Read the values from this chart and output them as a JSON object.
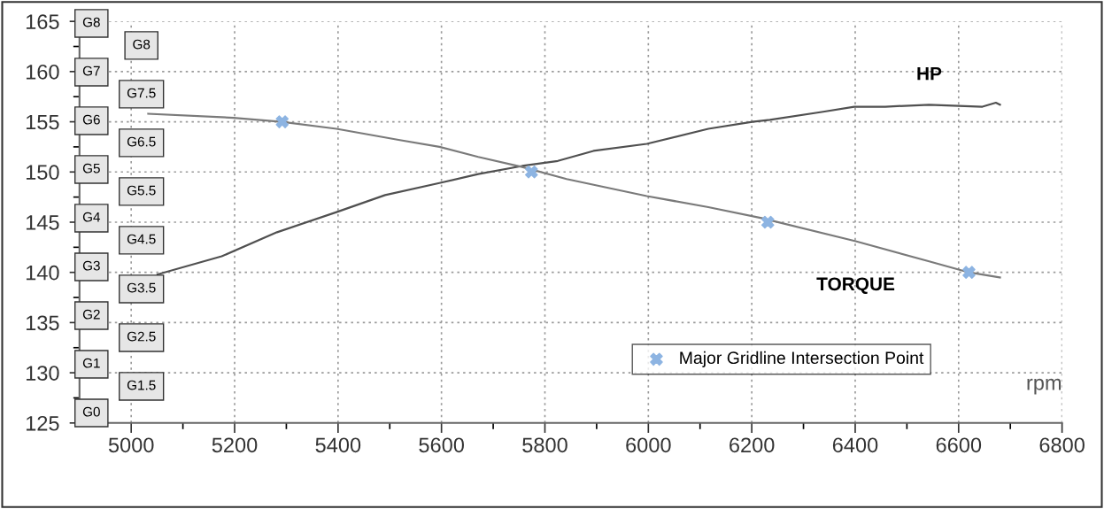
{
  "chart_data": {
    "type": "line",
    "xlabel": "rpm",
    "xlim": [
      4900,
      6800
    ],
    "ylim": [
      125,
      165
    ],
    "xticks": [
      5000,
      {
        "value": 5100,
        "label": null
      },
      5200,
      {
        "value": 5300,
        "label": null
      },
      5400,
      {
        "value": 5500,
        "label": null
      },
      5600,
      {
        "value": 5700,
        "label": null
      },
      5800,
      {
        "value": 5900,
        "label": null
      },
      6000,
      {
        "value": 6100,
        "label": null
      },
      6200,
      {
        "value": 6300,
        "label": null
      },
      6400,
      {
        "value": 6500,
        "label": null
      },
      6600,
      {
        "value": 6700,
        "label": null
      },
      6800
    ],
    "yticks": [
      125,
      {
        "value": 127.5,
        "label": null
      },
      130,
      {
        "value": 132.5,
        "label": null
      },
      135,
      {
        "value": 137.5,
        "label": null
      },
      140,
      {
        "value": 142.5,
        "label": null
      },
      145,
      {
        "value": 147.5,
        "label": null
      },
      150,
      {
        "value": 152.5,
        "label": null
      },
      155,
      {
        "value": 157.5,
        "label": null
      },
      160,
      {
        "value": 162.5,
        "label": null
      },
      165
    ],
    "grid": true,
    "legend": "bottom right",
    "series": [
      {
        "name": "HP",
        "color": "#505050",
        "x": [
          5051,
          5175,
          5282,
          5397,
          5491,
          5596,
          5671,
          5756,
          5825,
          5894,
          5997,
          6116,
          6201,
          6235,
          6338,
          6398,
          6458,
          6543,
          6646,
          6672,
          6680
        ],
        "values": [
          139.8,
          141.6,
          144.0,
          146.0,
          147.7,
          148.9,
          149.8,
          150.6,
          151.1,
          152.1,
          152.8,
          154.3,
          155.0,
          155.2,
          156.0,
          156.5,
          156.5,
          156.7,
          156.5,
          156.9,
          156.7
        ]
      },
      {
        "name": "TORQUE",
        "color": "#7a7a7a",
        "x": [
          5033,
          5198,
          5291,
          5397,
          5517,
          5596,
          5671,
          5756,
          5842,
          5997,
          6116,
          6219,
          6401,
          6543,
          6620,
          6680
        ],
        "values": [
          155.8,
          155.4,
          155.0,
          154.3,
          153.2,
          152.5,
          151.5,
          150.5,
          149.3,
          147.6,
          146.5,
          145.4,
          143.1,
          141.1,
          140.0,
          139.5
        ]
      },
      {
        "name": "Major Gridline Intersection Point",
        "color": "#8db4e2",
        "type": "scatter",
        "marker": "cross",
        "x": [
          5292,
          5774,
          6231,
          6620
        ],
        "values": [
          155,
          150,
          145,
          140
        ]
      }
    ],
    "annotations": [
      "G8",
      "G7",
      "G6",
      "G5",
      "G4",
      "G3",
      "G2",
      "G1",
      "G0",
      "G8",
      "G7.5",
      "G6.5",
      "G5.5",
      "G4.5",
      "G3.5",
      "G2.5",
      "G1.5"
    ]
  }
}
